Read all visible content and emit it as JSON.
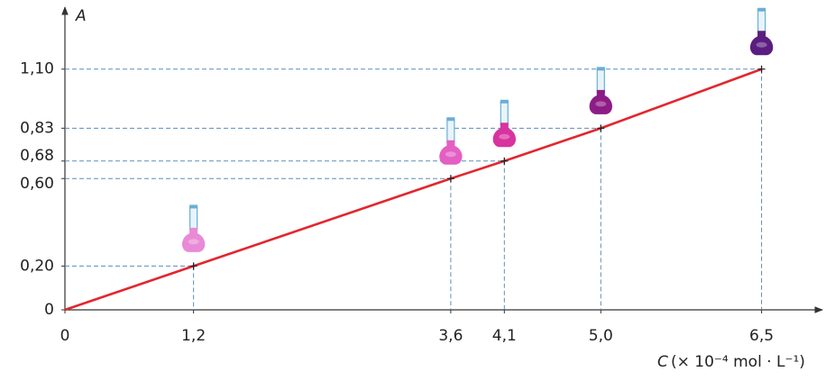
{
  "chart_data": {
    "type": "line",
    "y_label": "A",
    "x_label_var": "C",
    "x_label_unit": "(× 10⁻⁴ mol · L⁻¹)",
    "x": [
      0,
      1.2,
      3.6,
      4.1,
      5.0,
      6.5
    ],
    "series": [
      {
        "color": "#e3262d",
        "values": [
          0,
          0.2,
          0.6,
          0.68,
          0.83,
          1.1
        ]
      }
    ],
    "flask_colors": [
      "#e98ad6",
      "#e45fc4",
      "#d8339f",
      "#8d1c85",
      "#5b1e80"
    ],
    "xlim": [
      0,
      7
    ],
    "ylim": [
      0,
      1.35
    ],
    "xticks": [
      0,
      {
        "value": 1.2,
        "label": "1,2"
      },
      {
        "value": 3.6,
        "label": "3,6"
      },
      {
        "value": 4.1,
        "label": "4,1"
      },
      {
        "value": 5.0,
        "label": "5,0"
      },
      {
        "value": 6.5,
        "label": "6,5"
      }
    ],
    "yticks": [
      0,
      {
        "value": 0.2,
        "label": "0,20"
      },
      {
        "value": 0.6,
        "label": "0,60"
      },
      {
        "value": 0.68,
        "label": "0,68"
      },
      {
        "value": 0.83,
        "label": "0,83"
      },
      {
        "value": 1.1,
        "label": "1,10"
      }
    ]
  }
}
